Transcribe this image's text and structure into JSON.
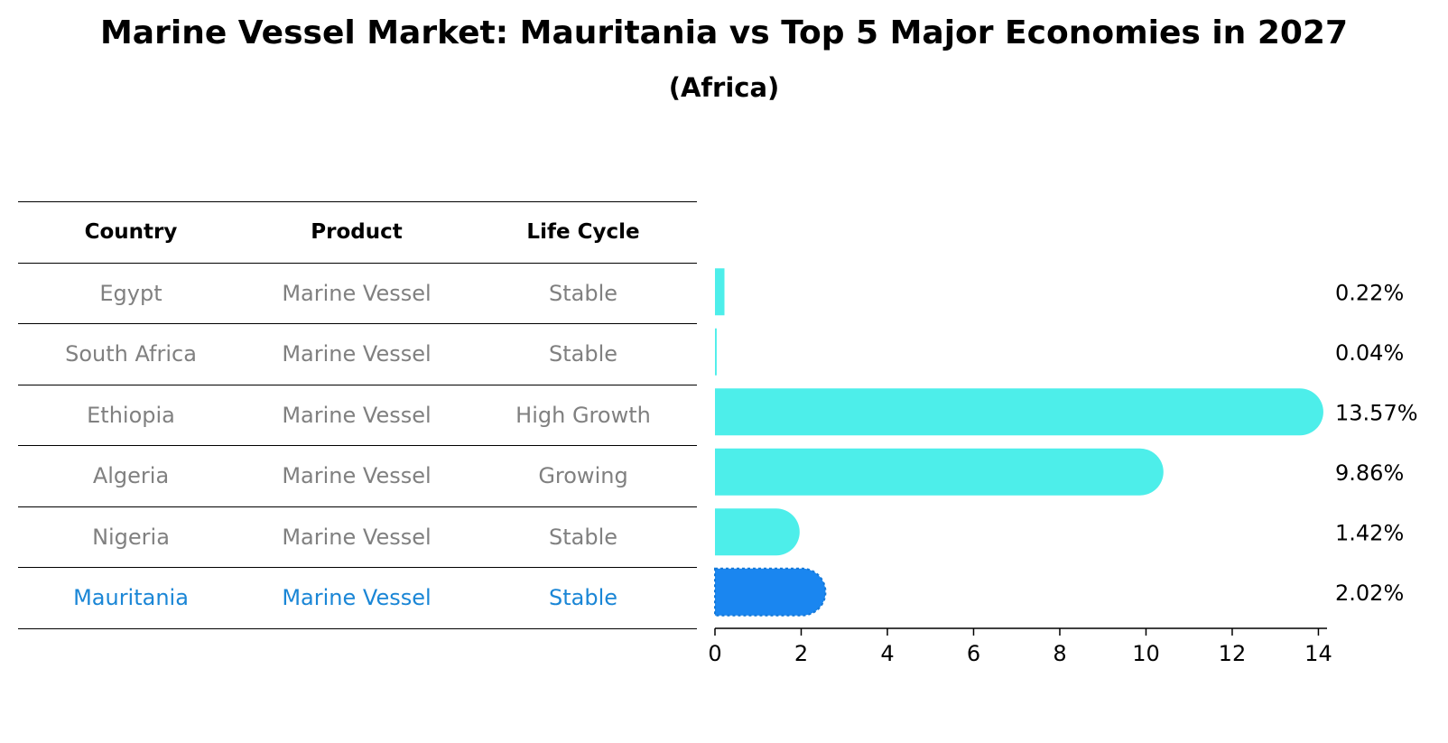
{
  "title": "Marine Vessel Market: Mauritania vs Top 5 Major Economies in 2027",
  "subtitle": "(Africa)",
  "table": {
    "headers": [
      "Country",
      "Product",
      "Life Cycle"
    ],
    "rows": [
      {
        "country": "Egypt",
        "product": "Marine Vessel",
        "life_cycle": "Stable"
      },
      {
        "country": "South Africa",
        "product": "Marine Vessel",
        "life_cycle": "Stable"
      },
      {
        "country": "Ethiopia",
        "product": "Marine Vessel",
        "life_cycle": "High Growth"
      },
      {
        "country": "Algeria",
        "product": "Marine Vessel",
        "life_cycle": "Growing"
      },
      {
        "country": "Nigeria",
        "product": "Marine Vessel",
        "life_cycle": "Stable"
      },
      {
        "country": "Mauritania",
        "product": "Marine Vessel",
        "life_cycle": "Stable"
      }
    ]
  },
  "chart_data": {
    "type": "bar",
    "orientation": "horizontal",
    "categories": [
      "Egypt",
      "South Africa",
      "Ethiopia",
      "Algeria",
      "Nigeria",
      "Mauritania"
    ],
    "values": [
      0.22,
      0.04,
      13.57,
      9.86,
      1.42,
      2.02
    ],
    "value_labels": [
      "0.22%",
      "0.04%",
      "13.57%",
      "9.86%",
      "1.42%",
      "2.02%"
    ],
    "xlim": [
      0,
      14.2
    ],
    "xticks": [
      0,
      2,
      4,
      6,
      8,
      10,
      12,
      14
    ],
    "highlight": "Mauritania",
    "colors": {
      "default": "#4deeea",
      "highlight": "#1a86f0"
    },
    "grid": false
  }
}
